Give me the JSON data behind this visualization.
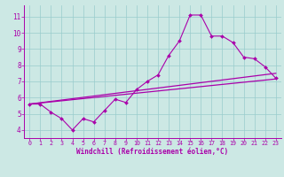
{
  "xlabel": "Windchill (Refroidissement éolien,°C)",
  "bg_color": "#cce8e4",
  "line_color": "#aa00aa",
  "grid_color": "#99cccc",
  "x_min": -0.5,
  "x_max": 23.5,
  "y_min": 3.5,
  "y_max": 11.7,
  "yticks": [
    4,
    5,
    6,
    7,
    8,
    9,
    10,
    11
  ],
  "xticks": [
    0,
    1,
    2,
    3,
    4,
    5,
    6,
    7,
    8,
    9,
    10,
    11,
    12,
    13,
    14,
    15,
    16,
    17,
    18,
    19,
    20,
    21,
    22,
    23
  ],
  "line1_x": [
    0,
    1,
    2,
    3,
    4,
    5,
    6,
    7,
    8,
    9,
    10,
    11,
    12,
    13,
    14,
    15,
    16,
    17,
    18,
    19,
    20,
    21,
    22,
    23
  ],
  "line1_y": [
    5.6,
    5.6,
    5.1,
    4.7,
    4.0,
    4.7,
    4.5,
    5.2,
    5.9,
    5.7,
    6.5,
    7.0,
    7.4,
    8.6,
    9.5,
    11.1,
    11.1,
    9.8,
    9.8,
    9.4,
    8.5,
    8.4,
    7.9,
    7.2
  ],
  "line2_x": [
    0,
    23
  ],
  "line2_y": [
    5.6,
    7.15
  ],
  "line3_x": [
    0,
    23
  ],
  "line3_y": [
    5.6,
    7.5
  ],
  "xlabel_fontsize": 5.5,
  "tick_fontsize_x": 4.8,
  "tick_fontsize_y": 5.5
}
